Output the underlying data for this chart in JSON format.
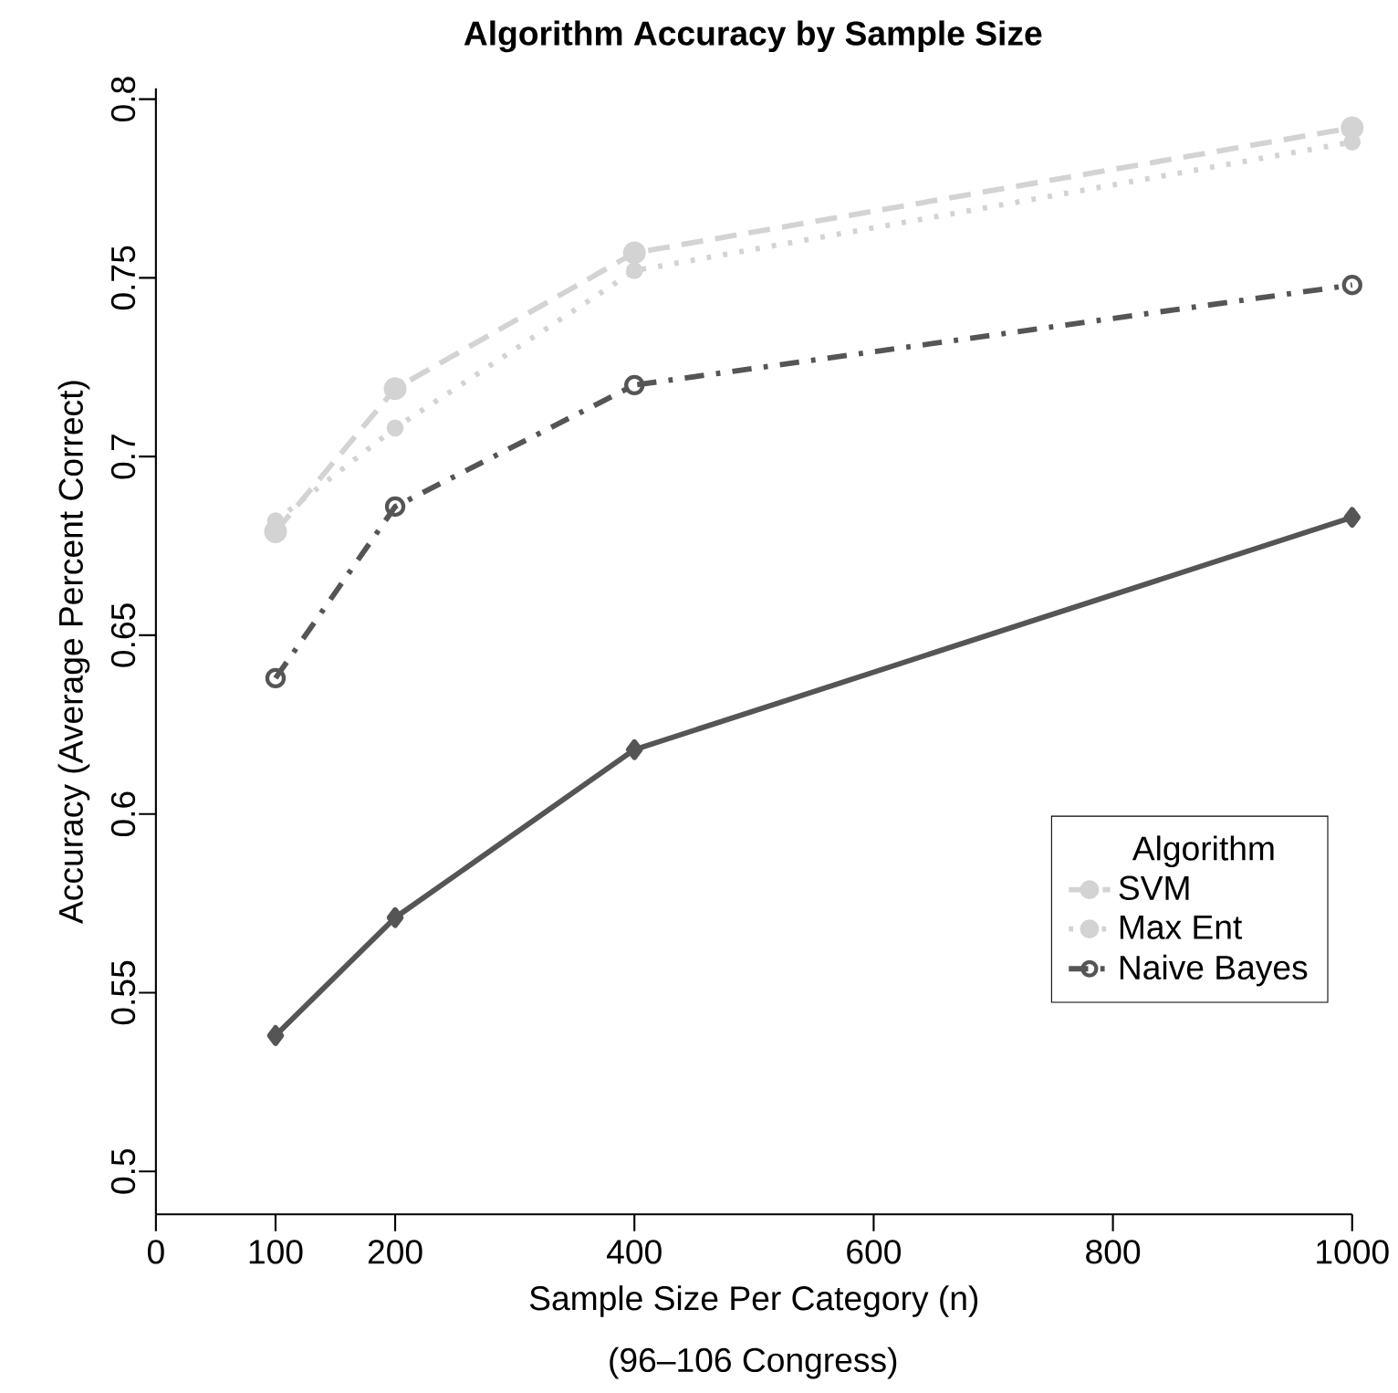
{
  "chart_data": {
    "type": "line",
    "title": "Algorithm Accuracy by Sample Size",
    "xlabel": "Sample Size Per Category (n)",
    "ylabel": "Accuracy (Average Percent Correct)",
    "annotations": [
      "(96–106 Congress)"
    ],
    "legend_title": "Algorithm",
    "legend": "bottom right",
    "x": [
      100,
      200,
      400,
      1000
    ],
    "xlim": [
      0,
      1000
    ],
    "xticks": [
      0,
      100,
      200,
      400,
      600,
      800,
      1000
    ],
    "ylim": [
      0.488,
      0.803
    ],
    "yticks": [
      0.5,
      0.55,
      0.6,
      0.65,
      0.7,
      0.75,
      0.8
    ],
    "series": [
      {
        "color": "#555555",
        "marker": "diamond",
        "line_style": "solid",
        "values": [
          0.538,
          0.571,
          0.618,
          0.683
        ]
      },
      {
        "name": "SVM",
        "color": "#d3d3d3",
        "marker": "circle",
        "line_style": "dashed",
        "values": [
          0.679,
          0.719,
          0.757,
          0.792
        ]
      },
      {
        "name": "Max Ent",
        "color": "#d3d3d3",
        "marker": "small circle",
        "line_style": "dotted",
        "values": [
          0.682,
          0.708,
          0.752,
          0.788
        ]
      },
      {
        "name": "Naive Bayes",
        "color": "#555555",
        "marker": "open circle",
        "line_style": "dashdot",
        "values": [
          0.638,
          0.686,
          0.72,
          0.748
        ]
      }
    ]
  }
}
